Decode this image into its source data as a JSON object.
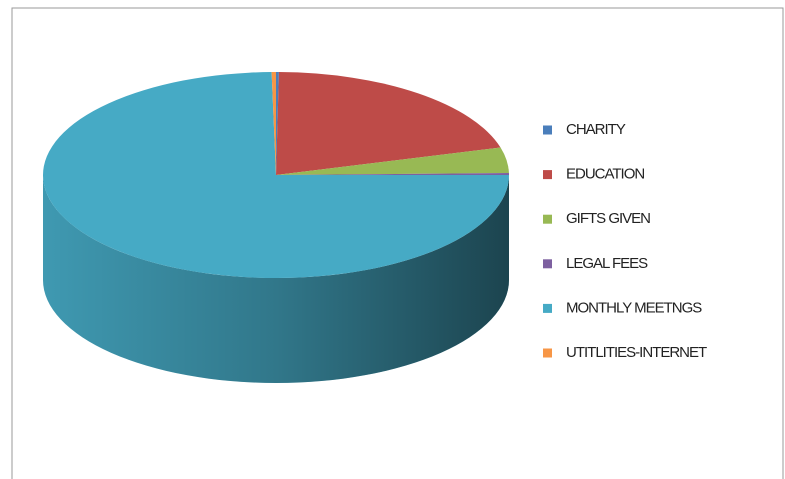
{
  "chart_data": {
    "type": "pie3d",
    "series": [
      {
        "name": "CHARITY",
        "color": "#4a7ebb",
        "values": [
          0.2
        ]
      },
      {
        "name": "EDUCATION",
        "color": "#be4b48",
        "values": [
          20.5
        ]
      },
      {
        "name": "GIFTS GIVEN",
        "color": "#98b954",
        "values": [
          4
        ]
      },
      {
        "name": "LEGAL FEES",
        "color": "#7d60a0",
        "values": [
          0.3
        ]
      },
      {
        "name": "MONTHLY MEETNGS",
        "color": "#46aac5",
        "values": [
          74.7
        ]
      },
      {
        "name": "UTITLITIES-INTERNET",
        "color": "#f79646",
        "values": [
          0.3
        ]
      }
    ],
    "legend": "right"
  }
}
